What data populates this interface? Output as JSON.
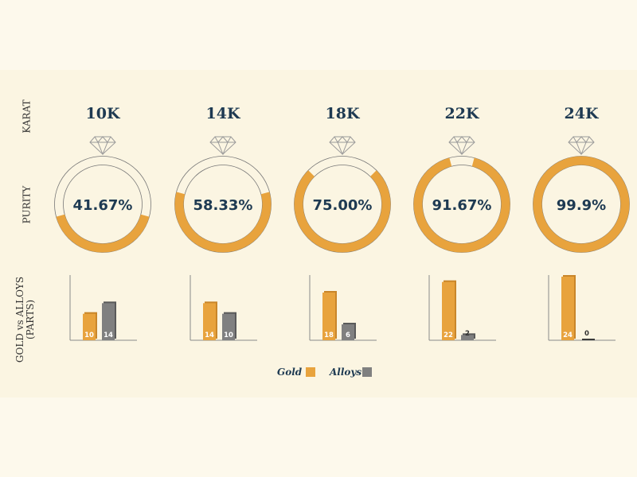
{
  "row_labels": {
    "karat": "KARAT",
    "purity": "PURITY",
    "gold_vs_alloys_line1": "GOLD vs ALLOYS",
    "gold_vs_alloys_line2": "(PARTS)"
  },
  "colors": {
    "gold": "#e8a33d",
    "gold_dark": "#c9862a",
    "alloy": "#808080",
    "alloy_dark": "#5a5a5a",
    "text": "#1e3a52"
  },
  "legend": {
    "gold_label": "Gold",
    "alloys_label": "Alloys"
  },
  "chart_data": {
    "type": "bar",
    "categories": [
      "10K",
      "14K",
      "18K",
      "22K",
      "24K"
    ],
    "purity_labels": [
      "41.67%",
      "58.33%",
      "75.00%",
      "91.67%",
      "99.9%"
    ],
    "purity_values": [
      41.67,
      58.33,
      75.0,
      91.67,
      99.9
    ],
    "series": [
      {
        "name": "Gold",
        "values": [
          10,
          14,
          18,
          22,
          24
        ]
      },
      {
        "name": "Alloys",
        "values": [
          14,
          10,
          6,
          2,
          0
        ]
      }
    ],
    "ylim": [
      0,
      24
    ]
  }
}
